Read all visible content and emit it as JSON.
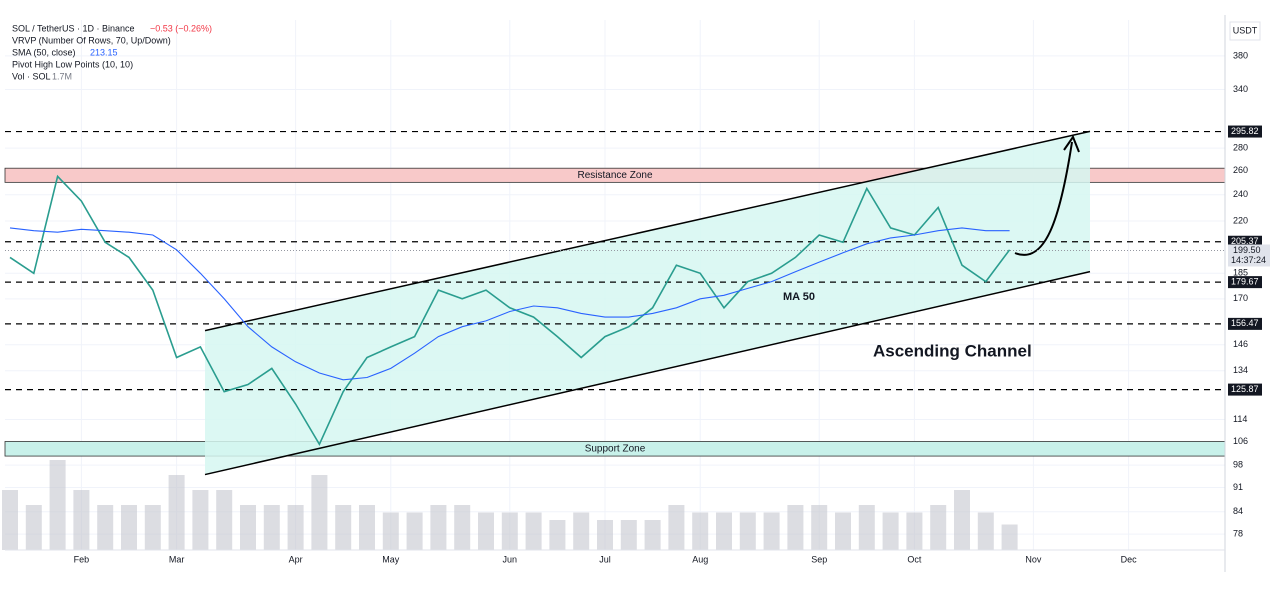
{
  "chart_data": {
    "type": "line",
    "header": {
      "symbol": "SOL / TetherUS · 1D · Binance",
      "change": "−0.53 (−0.26%)",
      "vrvp": "VRVP (Number Of Rows, 70, Up/Down)",
      "sma_label": "SMA (50, close)",
      "sma_value": 213.15,
      "pivots": "Pivot High Low Points (10, 10)",
      "volume_label": "Vol · SOL",
      "volume_value": "1.7M"
    },
    "currency": "USDT",
    "countdown": "14:37:24",
    "categories": [
      null,
      null,
      null,
      "Feb",
      null,
      null,
      null,
      "Mar",
      null,
      null,
      null,
      null,
      "Apr",
      null,
      null,
      null,
      "May",
      null,
      null,
      null,
      null,
      "Jun",
      null,
      null,
      null,
      "Jul",
      null,
      null,
      null,
      "Aug",
      null,
      null,
      null,
      null,
      "Sep",
      null,
      null,
      null,
      "Oct",
      null,
      null,
      null,
      null,
      "Nov",
      null,
      null,
      null,
      "Dec",
      null,
      null,
      null,
      null
    ],
    "series": [
      {
        "name": "SOL / TetherUS",
        "color": "#2a9d8f",
        "values": [
          195,
          185,
          255,
          235,
          205,
          195,
          175,
          140,
          145,
          125,
          128,
          135,
          120,
          105,
          125,
          140,
          145,
          150,
          175,
          170,
          175,
          165,
          160,
          150,
          140,
          150,
          155,
          165,
          190,
          185,
          165,
          180,
          185,
          195,
          210,
          205,
          245,
          215,
          210,
          230,
          190,
          180,
          200,
          null,
          null,
          null,
          null,
          null,
          null,
          null,
          null,
          null
        ]
      },
      {
        "name": "SMA (50, close)",
        "color": "#2962ff",
        "values": [
          215,
          213,
          212,
          214,
          213,
          212,
          210,
          200,
          185,
          170,
          155,
          145,
          138,
          133,
          130,
          131,
          135,
          142,
          150,
          155,
          158,
          163,
          166,
          165,
          162,
          160,
          160,
          162,
          165,
          170,
          172,
          176,
          180,
          186,
          192,
          198,
          204,
          208,
          210,
          213,
          215,
          213,
          213,
          null,
          null,
          null,
          null,
          null,
          null,
          null,
          null,
          null
        ]
      },
      {
        "name": "Vol · SOL",
        "axis": "volume",
        "color": "#c4c7ce",
        "values": [
          4,
          3,
          6,
          4,
          3,
          3,
          3,
          5,
          4,
          4,
          3,
          3,
          3,
          5,
          3,
          3,
          2.5,
          2.5,
          3,
          3,
          2.5,
          2.5,
          2.5,
          2,
          2.5,
          2,
          2,
          2,
          3,
          2.5,
          2.5,
          2.5,
          2.5,
          3,
          3,
          2.5,
          3,
          2.5,
          2.5,
          3,
          4,
          2.5,
          1.7,
          null,
          null,
          null,
          null,
          null,
          null,
          null,
          null,
          null
        ]
      }
    ],
    "log_scale": true,
    "ylim": [
      74,
      428
    ],
    "yticks": [
      380,
      340,
      280,
      260,
      240,
      220,
      185,
      170,
      146,
      134,
      114,
      106,
      98,
      91,
      84,
      78
    ],
    "grid": true,
    "levels": [
      295.82,
      205.37,
      179.67,
      156.47,
      125.87
    ],
    "last_price": {
      "value": 199.5,
      "label": "199.50"
    },
    "zones": [
      {
        "label": "Resistance Zone",
        "range": [
          250,
          262
        ],
        "color": "#f8c9c9"
      },
      {
        "label": "Support Zone",
        "range": [
          101,
          106
        ],
        "color": "#c8f1ea"
      }
    ],
    "channel": {
      "upper": [
        153,
        296
      ],
      "lower": [
        95,
        186
      ],
      "color": "#d6f7f1"
    },
    "annotations": [
      "MA 50",
      "Ascending Channel"
    ]
  }
}
